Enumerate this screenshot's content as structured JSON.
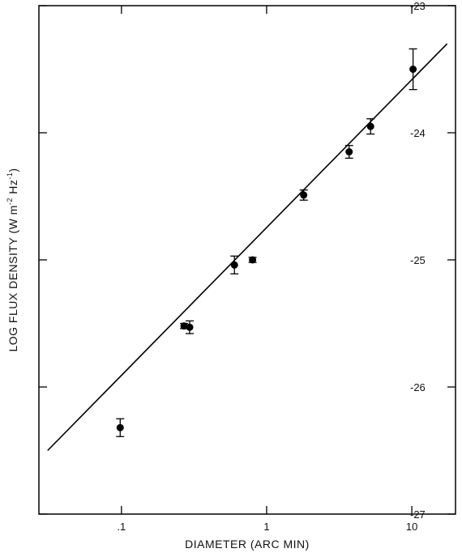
{
  "chart_data": {
    "type": "scatter",
    "title": "",
    "xlabel": "DIAMETER (ARC MIN)",
    "ylabel": {
      "prefix": "LOG FLUX DENSITY (W m",
      "sup1": "-2",
      "middle": " Hz",
      "sup2": "-1",
      "suffix": ")"
    },
    "x_scale": "log",
    "xlim": [
      0.027,
      20
    ],
    "ylim": [
      -27,
      -23
    ],
    "x_ticks": [
      {
        "value": 0.1,
        "label": ".1"
      },
      {
        "value": 1,
        "label": "1"
      },
      {
        "value": 10,
        "label": "10"
      }
    ],
    "y_ticks": [
      {
        "value": -23,
        "label": "-23"
      },
      {
        "value": -24,
        "label": "-24"
      },
      {
        "value": -25,
        "label": "-25"
      },
      {
        "value": -26,
        "label": "-26"
      },
      {
        "value": -27,
        "label": "-27"
      }
    ],
    "points": [
      {
        "x": 0.098,
        "y": -26.32,
        "err": 0.07
      },
      {
        "x": 0.27,
        "y": -25.52,
        "err": 0.02,
        "xerr": [
          0.255,
          0.285
        ]
      },
      {
        "x": 0.295,
        "y": -25.53,
        "err": 0.05
      },
      {
        "x": 0.6,
        "y": -25.04,
        "err": 0.07
      },
      {
        "x": 0.8,
        "y": -25.0,
        "err": 0.02
      },
      {
        "x": 1.8,
        "y": -24.49,
        "err": 0.04
      },
      {
        "x": 3.7,
        "y": -24.15,
        "err": 0.05
      },
      {
        "x": 5.2,
        "y": -23.95,
        "err": 0.06
      },
      {
        "x": 10.2,
        "y": -23.5,
        "err": 0.16
      }
    ],
    "fit_line": {
      "x": [
        0.031,
        17.5
      ],
      "y": [
        -26.5,
        -23.3
      ]
    },
    "grid": false,
    "legend": "none"
  }
}
